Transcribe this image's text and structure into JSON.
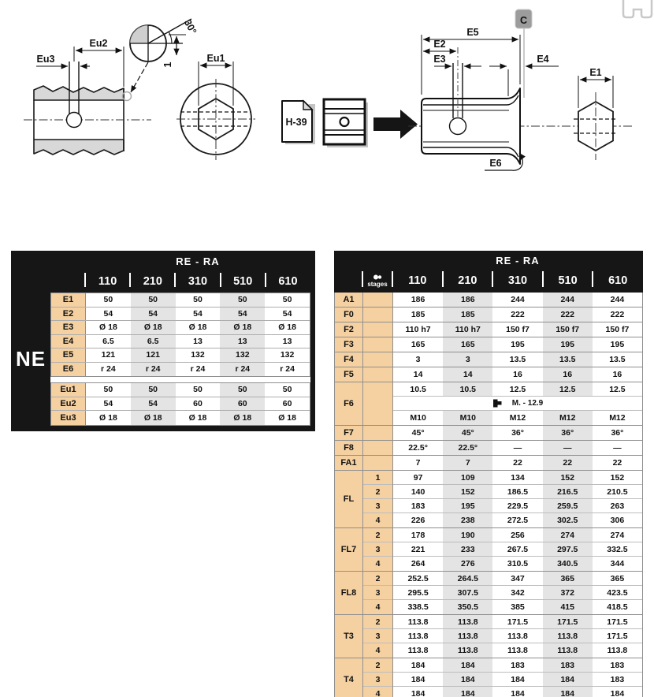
{
  "diagrams": {
    "labels": {
      "eu3": "Eu3",
      "eu2": "Eu2",
      "eu1": "Eu1",
      "deg30": "30°",
      "one": "1",
      "h39": "H-39",
      "e5": "E5",
      "e2": "E2",
      "e3": "E3",
      "e4": "E4",
      "e6": "E6",
      "e1": "E1",
      "c": "C"
    },
    "icons": {
      "stages": "gear-train",
      "f6_bolt": "hex-bolt",
      "top_right": "shaft-coupling",
      "arrow": "assembly-arrow",
      "hub_block": "hub-section",
      "page_ref": "catalog-page"
    }
  },
  "left_table": {
    "title": "RE - RA",
    "side_label": "NE",
    "columns": [
      "110",
      "210",
      "310",
      "510",
      "610"
    ],
    "sections": [
      {
        "rows": [
          {
            "label": "E1",
            "values": [
              "50",
              "50",
              "50",
              "50",
              "50"
            ]
          },
          {
            "label": "E2",
            "values": [
              "54",
              "54",
              "54",
              "54",
              "54"
            ]
          },
          {
            "label": "E3",
            "values": [
              "Ø 18",
              "Ø 18",
              "Ø 18",
              "Ø 18",
              "Ø 18"
            ]
          },
          {
            "label": "E4",
            "values": [
              "6.5",
              "6.5",
              "13",
              "13",
              "13"
            ]
          },
          {
            "label": "E5",
            "values": [
              "121",
              "121",
              "132",
              "132",
              "132"
            ]
          },
          {
            "label": "E6",
            "values": [
              "r 24",
              "r 24",
              "r 24",
              "r 24",
              "r 24"
            ]
          }
        ]
      },
      {
        "rows": [
          {
            "label": "Eu1",
            "values": [
              "50",
              "50",
              "50",
              "50",
              "50"
            ]
          },
          {
            "label": "Eu2",
            "values": [
              "54",
              "54",
              "60",
              "60",
              "60"
            ]
          },
          {
            "label": "Eu3",
            "values": [
              "Ø 18",
              "Ø 18",
              "Ø 18",
              "Ø 18",
              "Ø 18"
            ]
          }
        ]
      }
    ]
  },
  "right_table": {
    "title": "RE - RA",
    "stages_header": "stages",
    "columns": [
      "110",
      "210",
      "310",
      "510",
      "610"
    ],
    "groups": [
      {
        "label": "A1",
        "stages": [],
        "rows": [
          {
            "values": [
              "186",
              "186",
              "244",
              "244",
              "244"
            ]
          }
        ]
      },
      {
        "label": "F0",
        "stages": [],
        "rows": [
          {
            "values": [
              "185",
              "185",
              "222",
              "222",
              "222"
            ]
          }
        ]
      },
      {
        "label": "F2",
        "stages": [],
        "rows": [
          {
            "values": [
              "110 h7",
              "110 h7",
              "150 f7",
              "150 f7",
              "150 f7"
            ]
          }
        ]
      },
      {
        "label": "F3",
        "stages": [],
        "rows": [
          {
            "values": [
              "165",
              "165",
              "195",
              "195",
              "195"
            ]
          }
        ]
      },
      {
        "label": "F4",
        "stages": [],
        "rows": [
          {
            "values": [
              "3",
              "3",
              "13.5",
              "13.5",
              "13.5"
            ]
          }
        ]
      },
      {
        "label": "F5",
        "stages": [],
        "rows": [
          {
            "values": [
              "14",
              "14",
              "16",
              "16",
              "16"
            ]
          }
        ]
      },
      {
        "label": "F6",
        "stages": [],
        "rows": [
          {
            "values": [
              "10.5",
              "10.5",
              "12.5",
              "12.5",
              "12.5"
            ]
          },
          {
            "span_text": "M. - 12.9",
            "span_icon": "hex-bolt"
          },
          {
            "values": [
              "M10",
              "M10",
              "M12",
              "M12",
              "M12"
            ]
          }
        ]
      },
      {
        "label": "F7",
        "stages": [],
        "rows": [
          {
            "values": [
              "45°",
              "45°",
              "36°",
              "36°",
              "36°"
            ]
          }
        ]
      },
      {
        "label": "F8",
        "stages": [],
        "rows": [
          {
            "values": [
              "22.5°",
              "22.5°",
              "—",
              "—",
              "—"
            ]
          }
        ]
      },
      {
        "label": "FA1",
        "stages": [],
        "rows": [
          {
            "values": [
              "7",
              "7",
              "22",
              "22",
              "22"
            ]
          }
        ]
      },
      {
        "label": "FL",
        "stages": [
          "1",
          "2",
          "3",
          "4"
        ],
        "rows": [
          {
            "values": [
              "97",
              "109",
              "134",
              "152",
              "152"
            ]
          },
          {
            "values": [
              "140",
              "152",
              "186.5",
              "216.5",
              "210.5"
            ]
          },
          {
            "values": [
              "183",
              "195",
              "229.5",
              "259.5",
              "263"
            ]
          },
          {
            "values": [
              "226",
              "238",
              "272.5",
              "302.5",
              "306"
            ]
          }
        ]
      },
      {
        "label": "FL7",
        "stages": [
          "2",
          "3",
          "4"
        ],
        "rows": [
          {
            "values": [
              "178",
              "190",
              "256",
              "274",
              "274"
            ]
          },
          {
            "values": [
              "221",
              "233",
              "267.5",
              "297.5",
              "332.5"
            ]
          },
          {
            "values": [
              "264",
              "276",
              "310.5",
              "340.5",
              "344"
            ]
          }
        ]
      },
      {
        "label": "FL8",
        "stages": [
          "2",
          "3",
          "4"
        ],
        "rows": [
          {
            "values": [
              "252.5",
              "264.5",
              "347",
              "365",
              "365"
            ]
          },
          {
            "values": [
              "295.5",
              "307.5",
              "342",
              "372",
              "423.5"
            ]
          },
          {
            "values": [
              "338.5",
              "350.5",
              "385",
              "415",
              "418.5"
            ]
          }
        ]
      },
      {
        "label": "T3",
        "stages": [
          "2",
          "3",
          "4"
        ],
        "rows": [
          {
            "values": [
              "113.8",
              "113.8",
              "171.5",
              "171.5",
              "171.5"
            ]
          },
          {
            "values": [
              "113.8",
              "113.8",
              "113.8",
              "113.8",
              "171.5"
            ]
          },
          {
            "values": [
              "113.8",
              "113.8",
              "113.8",
              "113.8",
              "113.8"
            ]
          }
        ]
      },
      {
        "label": "T4",
        "stages": [
          "2",
          "3",
          "4"
        ],
        "rows": [
          {
            "values": [
              "184",
              "184",
              "183",
              "183",
              "183"
            ]
          },
          {
            "values": [
              "184",
              "184",
              "184",
              "184",
              "183"
            ]
          },
          {
            "values": [
              "184",
              "184",
              "184",
              "184",
              "184"
            ]
          }
        ]
      }
    ]
  }
}
